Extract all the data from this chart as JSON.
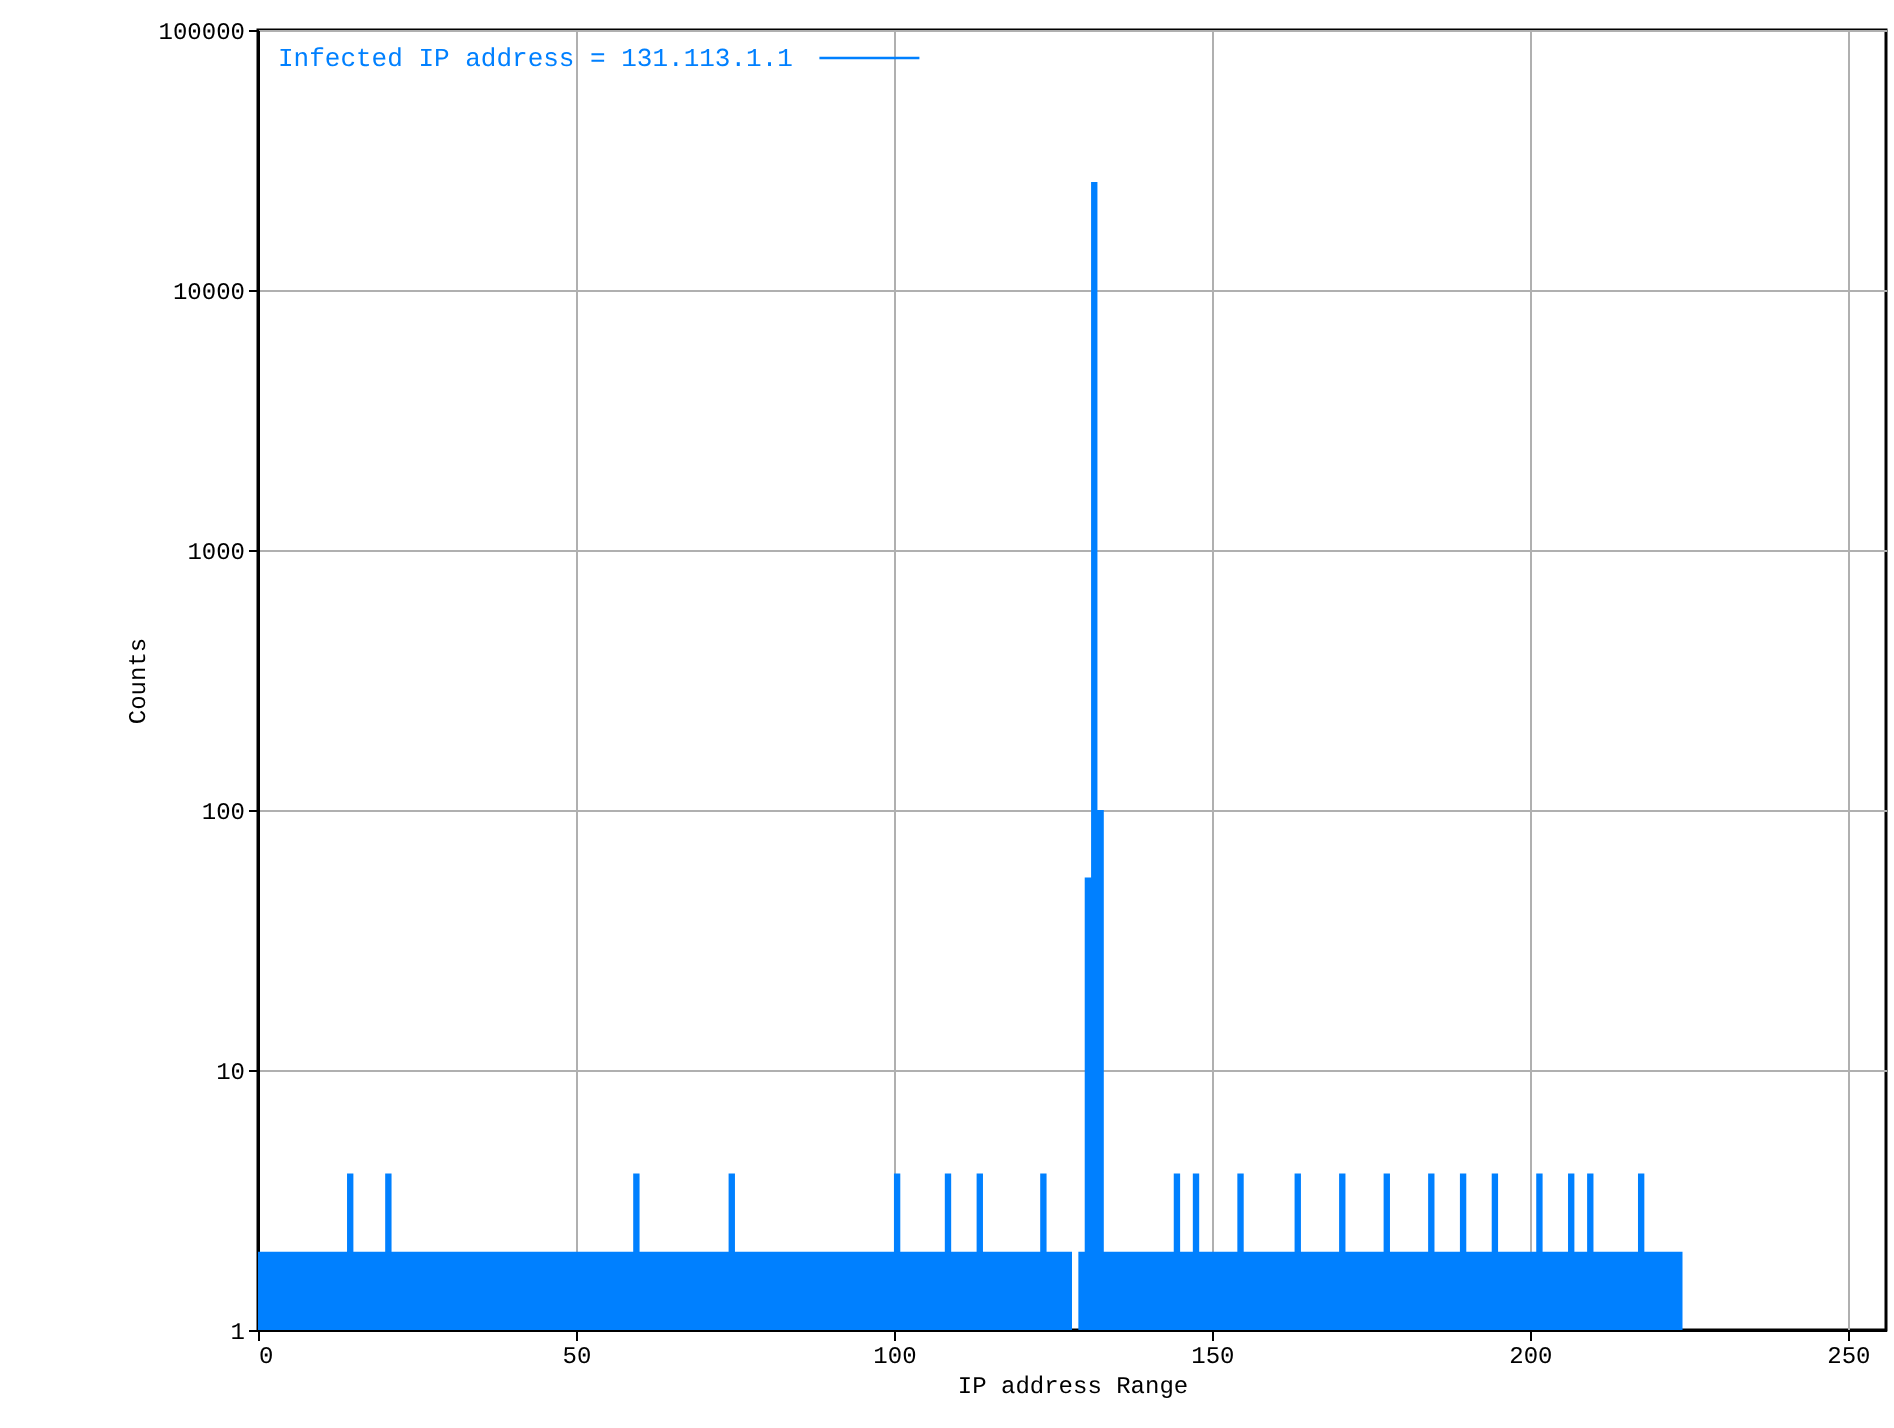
{
  "chart_data": {
    "type": "area",
    "xlabel": "IP address Range",
    "ylabel": "Counts",
    "x": [
      0,
      1,
      2,
      3,
      4,
      5,
      6,
      7,
      8,
      9,
      10,
      11,
      12,
      13,
      14,
      15,
      16,
      17,
      18,
      19,
      20,
      21,
      22,
      23,
      24,
      25,
      26,
      27,
      28,
      29,
      30,
      31,
      32,
      33,
      34,
      35,
      36,
      37,
      38,
      39,
      40,
      41,
      42,
      43,
      44,
      45,
      46,
      47,
      48,
      49,
      50,
      51,
      52,
      53,
      54,
      55,
      56,
      57,
      58,
      59,
      60,
      61,
      62,
      63,
      64,
      65,
      66,
      67,
      68,
      69,
      70,
      71,
      72,
      73,
      74,
      75,
      76,
      77,
      78,
      79,
      80,
      81,
      82,
      83,
      84,
      85,
      86,
      87,
      88,
      89,
      90,
      91,
      92,
      93,
      94,
      95,
      96,
      97,
      98,
      99,
      100,
      101,
      102,
      103,
      104,
      105,
      106,
      107,
      108,
      109,
      110,
      111,
      112,
      113,
      114,
      115,
      116,
      117,
      118,
      119,
      120,
      121,
      122,
      123,
      124,
      125,
      126,
      127,
      128,
      129,
      130,
      131,
      132,
      133,
      134,
      135,
      136,
      137,
      138,
      139,
      140,
      141,
      142,
      143,
      144,
      145,
      146,
      147,
      148,
      149,
      150,
      151,
      152,
      153,
      154,
      155,
      156,
      157,
      158,
      159,
      160,
      161,
      162,
      163,
      164,
      165,
      166,
      167,
      168,
      169,
      170,
      171,
      172,
      173,
      174,
      175,
      176,
      177,
      178,
      179,
      180,
      181,
      182,
      183,
      184,
      185,
      186,
      187,
      188,
      189,
      190,
      191,
      192,
      193,
      194,
      195,
      196,
      197,
      198,
      199,
      200,
      201,
      202,
      203,
      204,
      205,
      206,
      207,
      208,
      209,
      210,
      211,
      212,
      213,
      214,
      215,
      216,
      217,
      218,
      219,
      220,
      221,
      222,
      223
    ],
    "series": [
      {
        "name": "Infected IP address = 131.113.1.1",
        "color": "#0080ff",
        "values": [
          2,
          2,
          2,
          2,
          2,
          2,
          2,
          2,
          2,
          2,
          2,
          2,
          2,
          2,
          4,
          2,
          2,
          2,
          2,
          2,
          4,
          2,
          2,
          2,
          2,
          2,
          2,
          2,
          2,
          2,
          2,
          2,
          2,
          2,
          2,
          2,
          2,
          2,
          2,
          2,
          2,
          2,
          2,
          2,
          2,
          2,
          2,
          2,
          2,
          2,
          2,
          2,
          2,
          2,
          2,
          2,
          2,
          2,
          2,
          4,
          2,
          2,
          2,
          2,
          2,
          2,
          2,
          2,
          2,
          2,
          2,
          2,
          2,
          2,
          4,
          2,
          2,
          2,
          2,
          2,
          2,
          2,
          2,
          2,
          2,
          2,
          2,
          2,
          2,
          2,
          2,
          2,
          2,
          2,
          2,
          2,
          2,
          2,
          2,
          2,
          4,
          2,
          2,
          2,
          2,
          2,
          2,
          2,
          4,
          2,
          2,
          2,
          2,
          4,
          2,
          2,
          2,
          2,
          2,
          2,
          2,
          2,
          2,
          4,
          2,
          2,
          2,
          2,
          1,
          2,
          55,
          26000,
          100,
          2,
          2,
          2,
          2,
          2,
          2,
          2,
          2,
          2,
          2,
          2,
          4,
          2,
          2,
          4,
          2,
          2,
          2,
          2,
          2,
          2,
          4,
          2,
          2,
          2,
          2,
          2,
          2,
          2,
          2,
          4,
          2,
          2,
          2,
          2,
          2,
          2,
          4,
          2,
          2,
          2,
          2,
          2,
          2,
          4,
          2,
          2,
          2,
          2,
          2,
          2,
          4,
          2,
          2,
          2,
          2,
          4,
          2,
          2,
          2,
          2,
          4,
          2,
          2,
          2,
          2,
          2,
          2,
          4,
          2,
          2,
          2,
          2,
          4,
          2,
          2,
          4,
          2,
          2,
          2,
          2,
          2,
          2,
          2,
          4,
          2,
          2,
          2,
          2,
          2,
          2
        ]
      }
    ],
    "xlim": [
      0,
      256
    ],
    "xticks": [
      0,
      50,
      100,
      150,
      200,
      250
    ],
    "ylim": [
      1,
      100000
    ],
    "yticks": [
      1,
      10,
      100,
      1000,
      10000,
      100000
    ],
    "log": "y",
    "grid": true,
    "legend": "top left"
  }
}
